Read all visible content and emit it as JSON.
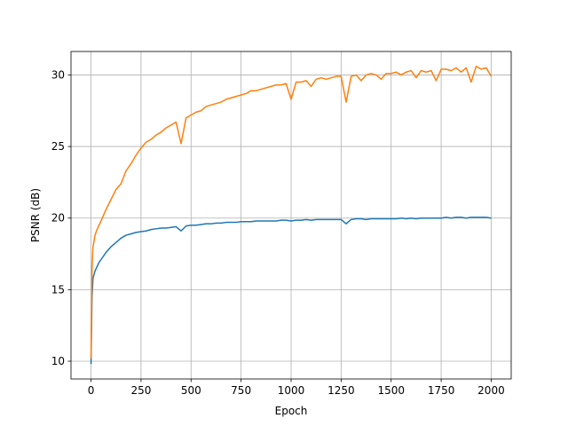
{
  "chart_data": {
    "type": "line",
    "xlabel": "Epoch",
    "ylabel": "PSNR (dB)",
    "x": [
      0,
      5,
      10,
      20,
      30,
      40,
      50,
      75,
      100,
      125,
      150,
      175,
      200,
      225,
      250,
      275,
      300,
      325,
      350,
      375,
      400,
      425,
      450,
      475,
      500,
      525,
      550,
      575,
      600,
      625,
      650,
      675,
      700,
      725,
      750,
      775,
      800,
      825,
      850,
      875,
      900,
      925,
      950,
      975,
      1000,
      1025,
      1050,
      1075,
      1100,
      1125,
      1150,
      1175,
      1200,
      1225,
      1250,
      1275,
      1300,
      1325,
      1350,
      1375,
      1400,
      1425,
      1450,
      1475,
      1500,
      1525,
      1550,
      1575,
      1600,
      1625,
      1650,
      1675,
      1700,
      1725,
      1750,
      1775,
      1800,
      1825,
      1850,
      1875,
      1900,
      1925,
      1950,
      1975,
      2000
    ],
    "series": [
      {
        "color": "#1f77b4",
        "values": [
          9.8,
          14.5,
          15.8,
          16.3,
          16.6,
          16.9,
          17.1,
          17.6,
          18.0,
          18.3,
          18.6,
          18.8,
          18.9,
          19.0,
          19.05,
          19.1,
          19.2,
          19.25,
          19.3,
          19.3,
          19.35,
          19.4,
          19.1,
          19.45,
          19.5,
          19.5,
          19.55,
          19.6,
          19.6,
          19.65,
          19.65,
          19.7,
          19.7,
          19.7,
          19.75,
          19.75,
          19.75,
          19.8,
          19.8,
          19.8,
          19.8,
          19.8,
          19.85,
          19.85,
          19.8,
          19.85,
          19.85,
          19.9,
          19.85,
          19.9,
          19.9,
          19.9,
          19.9,
          19.9,
          19.9,
          19.6,
          19.9,
          19.95,
          19.95,
          19.9,
          19.95,
          19.95,
          19.95,
          19.95,
          19.95,
          19.95,
          20.0,
          19.95,
          20.0,
          19.95,
          20.0,
          20.0,
          20.0,
          20.0,
          20.0,
          20.05,
          20.0,
          20.05,
          20.05,
          20.0,
          20.05,
          20.05,
          20.05,
          20.05,
          20.0
        ]
      },
      {
        "color": "#ff7f0e",
        "values": [
          10.2,
          16.5,
          18.0,
          18.8,
          19.2,
          19.5,
          19.8,
          20.6,
          21.3,
          22.0,
          22.4,
          23.3,
          23.8,
          24.4,
          24.9,
          25.3,
          25.5,
          25.8,
          26.0,
          26.3,
          26.5,
          26.7,
          25.2,
          27.0,
          27.2,
          27.4,
          27.5,
          27.8,
          27.9,
          28.0,
          28.1,
          28.3,
          28.4,
          28.5,
          28.6,
          28.7,
          28.9,
          28.9,
          29.0,
          29.1,
          29.2,
          29.3,
          29.3,
          29.4,
          28.3,
          29.5,
          29.5,
          29.6,
          29.2,
          29.7,
          29.8,
          29.7,
          29.8,
          29.9,
          29.9,
          28.1,
          29.9,
          30.0,
          29.6,
          30.0,
          30.1,
          30.0,
          29.7,
          30.1,
          30.1,
          30.2,
          30.0,
          30.2,
          30.3,
          29.8,
          30.3,
          30.2,
          30.3,
          29.6,
          30.4,
          30.4,
          30.3,
          30.5,
          30.2,
          30.5,
          29.5,
          30.6,
          30.4,
          30.5,
          29.9
        ]
      }
    ],
    "xlim": [
      -100,
      2100
    ],
    "ylim": [
      8.76,
      31.64
    ],
    "xticks": [
      0,
      250,
      500,
      750,
      1000,
      1250,
      1500,
      1750,
      2000
    ],
    "yticks": [
      10,
      15,
      20,
      25,
      30
    ],
    "grid": true
  }
}
